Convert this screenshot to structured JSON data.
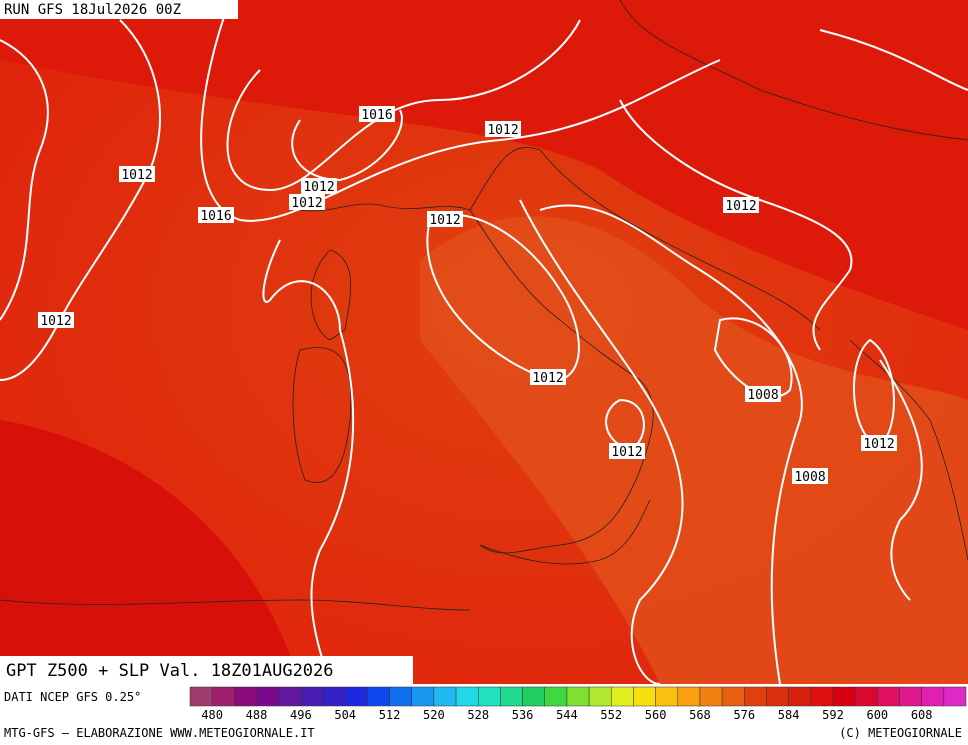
{
  "header": {
    "run": "RUN GFS 18Jul2026 00Z"
  },
  "map": {
    "isobar_labels": [
      "1016",
      "1012",
      "1012",
      "1016",
      "1012",
      "1012",
      "1012",
      "1012",
      "1012",
      "1012",
      "1008",
      "1012",
      "1012",
      "1008"
    ]
  },
  "footer": {
    "title": "GPT Z500 + SLP Val. 18Z01AUG2026",
    "source": "DATI NCEP GFS 0.25°",
    "credit_left": "MTG-GFS — ELABORAZIONE WWW.METEOGIORNALE.IT",
    "credit_right": "(C) METEOGIORNALE"
  },
  "colorbar": {
    "labels": [
      "480",
      "488",
      "496",
      "504",
      "512",
      "520",
      "528",
      "536",
      "544",
      "552",
      "560",
      "568",
      "576",
      "584",
      "592",
      "600",
      "608"
    ],
    "colors": [
      "#9c3d6e",
      "#a0206e",
      "#8c0a7a",
      "#7a0a8c",
      "#6418a0",
      "#4a1cb4",
      "#3420c8",
      "#1e28e0",
      "#1048f0",
      "#1070f0",
      "#1898f0",
      "#20b8f0",
      "#20d8e8",
      "#20e0c0",
      "#20d890",
      "#20d060",
      "#40d840",
      "#80e030",
      "#b0e830",
      "#e0f020",
      "#f8e010",
      "#f8c010",
      "#f8a010",
      "#f08010",
      "#e86010",
      "#e04010",
      "#d83010",
      "#d82010",
      "#e01010",
      "#d80010",
      "#d80830",
      "#e01060",
      "#e01890",
      "#e020b0",
      "#e028c8"
    ]
  }
}
